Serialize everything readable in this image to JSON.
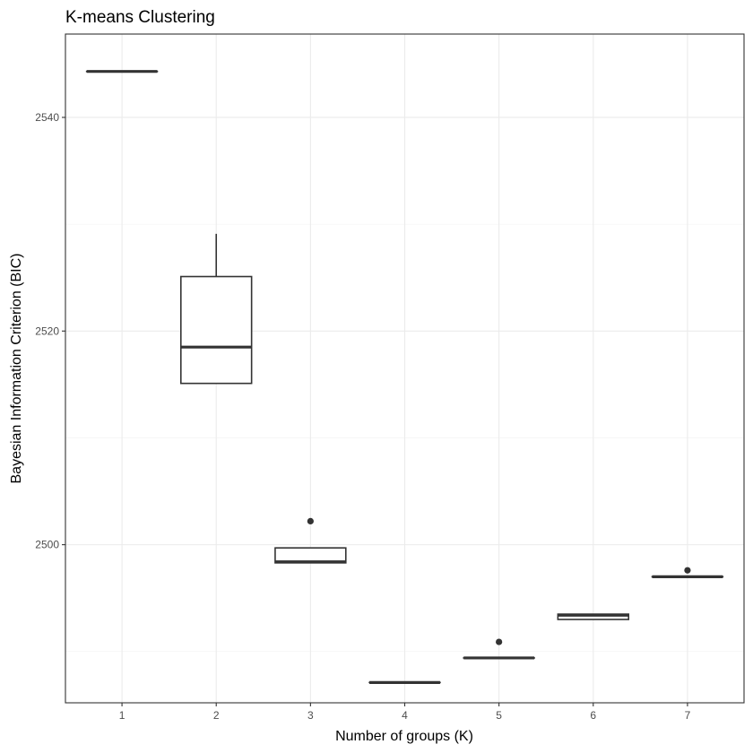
{
  "chart_data": {
    "type": "boxplot",
    "title": "K-means Clustering",
    "xlabel": "Number of groups (K)",
    "ylabel": "Bayesian Information Criterion (BIC)",
    "categories": [
      "1",
      "2",
      "3",
      "4",
      "5",
      "6",
      "7"
    ],
    "ylim": [
      2485.2,
      2547.8
    ],
    "yticks": [
      2500,
      2520,
      2540
    ],
    "yticks_labels": [
      "2500",
      "2520",
      "2540"
    ],
    "grid": true,
    "boxes": [
      {
        "category": "1",
        "lower_whisker": 2544.3,
        "q1": 2544.3,
        "median": 2544.3,
        "q3": 2544.3,
        "upper_whisker": 2544.3,
        "outliers": []
      },
      {
        "category": "2",
        "lower_whisker": 2515.1,
        "q1": 2515.1,
        "median": 2518.5,
        "q3": 2525.1,
        "upper_whisker": 2529.1,
        "outliers": []
      },
      {
        "category": "3",
        "lower_whisker": 2498.3,
        "q1": 2498.3,
        "median": 2498.4,
        "q3": 2499.7,
        "upper_whisker": 2499.7,
        "outliers": [
          2502.2
        ]
      },
      {
        "category": "4",
        "lower_whisker": 2487.1,
        "q1": 2487.1,
        "median": 2487.1,
        "q3": 2487.1,
        "upper_whisker": 2487.1,
        "outliers": []
      },
      {
        "category": "5",
        "lower_whisker": 2489.4,
        "q1": 2489.4,
        "median": 2489.4,
        "q3": 2489.4,
        "upper_whisker": 2489.4,
        "outliers": [
          2490.9
        ]
      },
      {
        "category": "6",
        "lower_whisker": 2493.0,
        "q1": 2493.0,
        "median": 2493.4,
        "q3": 2493.5,
        "upper_whisker": 2493.5,
        "outliers": []
      },
      {
        "category": "7",
        "lower_whisker": 2497.0,
        "q1": 2497.0,
        "median": 2497.0,
        "q3": 2497.0,
        "upper_whisker": 2497.0,
        "outliers": [
          2497.6
        ]
      }
    ]
  }
}
